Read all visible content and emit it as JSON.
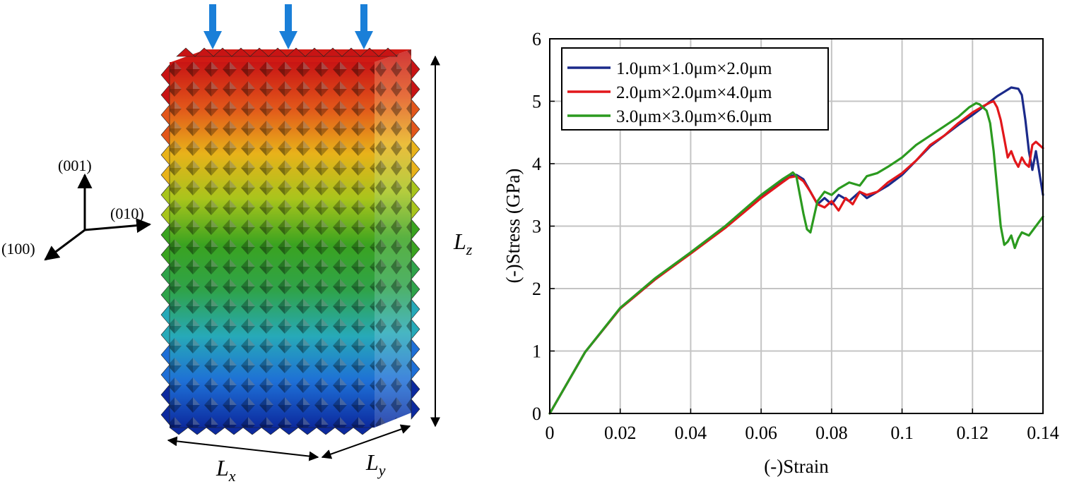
{
  "left_panel": {
    "axes": {
      "z_label": "(001)",
      "y_label": "(010)",
      "x_label": "(100)"
    },
    "dimension_labels": {
      "lx_base": "L",
      "lx_sub": "x",
      "ly_base": "L",
      "ly_sub": "y",
      "lz_base": "L",
      "lz_sub": "z"
    },
    "lattice_colors": [
      "#0c2a9e",
      "#1e6fd6",
      "#27a9b8",
      "#2fa34a",
      "#3aa320",
      "#a8c41c",
      "#e8b21a",
      "#e2561a",
      "#c81414"
    ],
    "arrow_color": "#1a7fd8",
    "load_arrow_count": 3
  },
  "chart_data": {
    "type": "line",
    "title": "",
    "xlabel": "(-)Strain",
    "ylabel": "(-)Stress (GPa)",
    "xlim": [
      0,
      0.14
    ],
    "ylim": [
      0,
      6
    ],
    "xticks": [
      0,
      0.02,
      0.04,
      0.06,
      0.08,
      0.1,
      0.12,
      0.14
    ],
    "xtick_labels": [
      "0",
      "0.02",
      "0.04",
      "0.06",
      "0.08",
      "0.1",
      "0.12",
      "0.14"
    ],
    "yticks": [
      0,
      1,
      2,
      3,
      4,
      5,
      6
    ],
    "ytick_labels": [
      "0",
      "1",
      "2",
      "3",
      "4",
      "5",
      "6"
    ],
    "grid": true,
    "legend_position": "top-left",
    "series": [
      {
        "name": "1.0μm×1.0μm×2.0μm",
        "color": "#1b2a8a",
        "x": [
          0,
          0.01,
          0.02,
          0.03,
          0.04,
          0.05,
          0.06,
          0.066,
          0.068,
          0.07,
          0.072,
          0.074,
          0.076,
          0.078,
          0.08,
          0.082,
          0.085,
          0.088,
          0.09,
          0.093,
          0.096,
          0.1,
          0.104,
          0.108,
          0.112,
          0.116,
          0.12,
          0.124,
          0.127,
          0.129,
          0.131,
          0.133,
          0.134,
          0.135,
          0.136,
          0.137,
          0.138,
          0.139,
          0.14
        ],
        "y": [
          0,
          0.98,
          1.68,
          2.15,
          2.57,
          3.0,
          3.48,
          3.72,
          3.8,
          3.82,
          3.75,
          3.55,
          3.35,
          3.45,
          3.35,
          3.5,
          3.4,
          3.55,
          3.45,
          3.55,
          3.65,
          3.82,
          4.05,
          4.28,
          4.45,
          4.62,
          4.78,
          4.95,
          5.08,
          5.15,
          5.22,
          5.2,
          5.1,
          4.7,
          4.2,
          3.9,
          4.2,
          3.85,
          3.5
        ]
      },
      {
        "name": "2.0μm×2.0μm×4.0μm",
        "color": "#e2171b",
        "x": [
          0,
          0.01,
          0.02,
          0.03,
          0.04,
          0.05,
          0.06,
          0.066,
          0.068,
          0.07,
          0.072,
          0.074,
          0.076,
          0.078,
          0.08,
          0.082,
          0.084,
          0.086,
          0.088,
          0.09,
          0.093,
          0.096,
          0.1,
          0.104,
          0.108,
          0.112,
          0.116,
          0.12,
          0.123,
          0.125,
          0.126,
          0.127,
          0.128,
          0.129,
          0.13,
          0.131,
          0.132,
          0.133,
          0.134,
          0.135,
          0.136,
          0.137,
          0.138,
          0.14
        ],
        "y": [
          0,
          0.98,
          1.68,
          2.15,
          2.56,
          2.98,
          3.45,
          3.7,
          3.78,
          3.8,
          3.72,
          3.55,
          3.35,
          3.3,
          3.4,
          3.25,
          3.45,
          3.35,
          3.55,
          3.5,
          3.55,
          3.7,
          3.85,
          4.05,
          4.3,
          4.45,
          4.65,
          4.82,
          4.92,
          4.98,
          5.0,
          4.9,
          4.7,
          4.4,
          4.1,
          4.2,
          4.05,
          3.95,
          4.1,
          4.0,
          3.95,
          4.3,
          4.35,
          4.25
        ]
      },
      {
        "name": "3.0μm×3.0μm×6.0μm",
        "color": "#2b9a1f",
        "x": [
          0,
          0.01,
          0.02,
          0.03,
          0.04,
          0.05,
          0.06,
          0.066,
          0.068,
          0.069,
          0.07,
          0.071,
          0.072,
          0.073,
          0.074,
          0.075,
          0.076,
          0.078,
          0.08,
          0.082,
          0.085,
          0.088,
          0.09,
          0.093,
          0.096,
          0.1,
          0.104,
          0.108,
          0.112,
          0.116,
          0.119,
          0.121,
          0.122,
          0.123,
          0.124,
          0.125,
          0.126,
          0.127,
          0.128,
          0.129,
          0.13,
          0.131,
          0.132,
          0.133,
          0.134,
          0.136,
          0.138,
          0.14
        ],
        "y": [
          0,
          0.98,
          1.69,
          2.17,
          2.58,
          3.01,
          3.5,
          3.75,
          3.82,
          3.86,
          3.8,
          3.5,
          3.2,
          2.95,
          2.9,
          3.15,
          3.4,
          3.55,
          3.5,
          3.6,
          3.7,
          3.65,
          3.8,
          3.85,
          3.95,
          4.1,
          4.3,
          4.45,
          4.6,
          4.75,
          4.9,
          4.97,
          4.95,
          4.9,
          4.85,
          4.65,
          4.2,
          3.6,
          3.0,
          2.7,
          2.75,
          2.85,
          2.65,
          2.8,
          2.9,
          2.85,
          3.0,
          3.15
        ]
      }
    ]
  }
}
